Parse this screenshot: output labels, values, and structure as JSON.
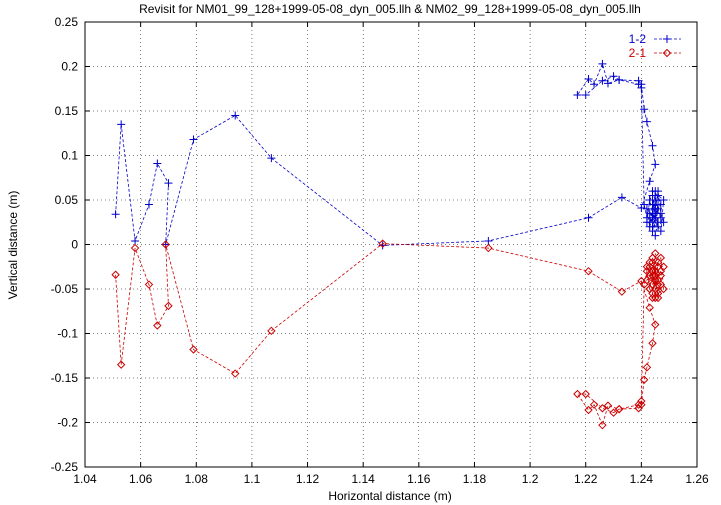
{
  "chart_data": {
    "type": "line",
    "title": "Revisit for NM01_99_128+1999-05-08_dyn_005.llh & NM02_99_128+1999-05-08_dyn_005.llh",
    "xlabel": "Horizontal distance (m)",
    "ylabel": "Vertical distance (m)",
    "xlim": [
      1.04,
      1.26
    ],
    "ylim": [
      -0.25,
      0.25
    ],
    "xticks": [
      "1.04",
      "1.06",
      "1.08",
      "1.1",
      "1.12",
      "1.14",
      "1.16",
      "1.18",
      "1.2",
      "1.22",
      "1.24",
      "1.26"
    ],
    "yticks": [
      "-0.25",
      "-0.2",
      "-0.15",
      "-0.1",
      "-0.05",
      "0",
      "0.05",
      "0.1",
      "0.15",
      "0.2",
      "0.25"
    ],
    "grid": true,
    "legend_position": "top-right",
    "series": [
      {
        "name": "1-2",
        "color": "#0000cc",
        "marker": "plus",
        "x": [
          1.051,
          1.053,
          1.058,
          1.063,
          1.066,
          1.07,
          1.069,
          1.079,
          1.094,
          1.107,
          1.147,
          1.185,
          1.221,
          1.233,
          1.24,
          1.243,
          1.245,
          1.244,
          1.242,
          1.241,
          1.24,
          1.239,
          1.232,
          1.228,
          1.226,
          1.223,
          1.221,
          1.217,
          1.22,
          1.226,
          1.23,
          1.232,
          1.239,
          1.24,
          1.241,
          1.242,
          1.243,
          1.244,
          1.245,
          1.246,
          1.247,
          1.248,
          1.244,
          1.246,
          1.245,
          1.243,
          1.247,
          1.248,
          1.244,
          1.245,
          1.246,
          1.242,
          1.243,
          1.244,
          1.246,
          1.247,
          1.245,
          1.244,
          1.246,
          1.243,
          1.245,
          1.247,
          1.244,
          1.246,
          1.245,
          1.244,
          1.243,
          1.242
        ],
        "y": [
          0.034,
          0.135,
          0.004,
          0.045,
          0.091,
          0.069,
          0.0,
          0.118,
          0.145,
          0.097,
          -0.001,
          0.004,
          0.03,
          0.053,
          0.041,
          0.071,
          0.09,
          0.111,
          0.138,
          0.152,
          0.18,
          0.184,
          0.185,
          0.181,
          0.203,
          0.18,
          0.186,
          0.168,
          0.168,
          0.184,
          0.189,
          0.185,
          0.18,
          0.176,
          0.045,
          0.03,
          0.05,
          0.055,
          0.04,
          0.06,
          0.035,
          0.025,
          0.02,
          0.045,
          0.03,
          0.035,
          0.015,
          0.05,
          0.06,
          0.01,
          0.025,
          0.04,
          0.02,
          0.03,
          0.055,
          0.045,
          0.035,
          0.015,
          0.04,
          0.025,
          0.05,
          0.03,
          0.045,
          0.02,
          0.06,
          0.035,
          0.05,
          0.025
        ]
      },
      {
        "name": "2-1",
        "color": "#cc0000",
        "marker": "diamond",
        "x": [
          1.051,
          1.053,
          1.058,
          1.063,
          1.066,
          1.07,
          1.069,
          1.079,
          1.094,
          1.107,
          1.147,
          1.185,
          1.221,
          1.233,
          1.24,
          1.243,
          1.245,
          1.244,
          1.242,
          1.241,
          1.24,
          1.239,
          1.232,
          1.228,
          1.226,
          1.223,
          1.221,
          1.217,
          1.22,
          1.226,
          1.23,
          1.232,
          1.239,
          1.24,
          1.241,
          1.242,
          1.243,
          1.244,
          1.245,
          1.246,
          1.247,
          1.248,
          1.244,
          1.246,
          1.245,
          1.243,
          1.247,
          1.248,
          1.244,
          1.245,
          1.246,
          1.242,
          1.243,
          1.244,
          1.246,
          1.247,
          1.245,
          1.244,
          1.246,
          1.243,
          1.245,
          1.247,
          1.244,
          1.246,
          1.245,
          1.244,
          1.243,
          1.242
        ],
        "y": [
          -0.034,
          -0.135,
          -0.004,
          -0.045,
          -0.091,
          -0.069,
          0.0,
          -0.118,
          -0.145,
          -0.097,
          0.001,
          -0.004,
          -0.03,
          -0.053,
          -0.041,
          -0.071,
          -0.09,
          -0.111,
          -0.138,
          -0.152,
          -0.18,
          -0.184,
          -0.185,
          -0.181,
          -0.203,
          -0.18,
          -0.186,
          -0.168,
          -0.168,
          -0.184,
          -0.189,
          -0.185,
          -0.18,
          -0.176,
          -0.045,
          -0.03,
          -0.05,
          -0.055,
          -0.04,
          -0.06,
          -0.035,
          -0.025,
          -0.02,
          -0.045,
          -0.03,
          -0.035,
          -0.015,
          -0.05,
          -0.06,
          -0.01,
          -0.025,
          -0.04,
          -0.02,
          -0.03,
          -0.055,
          -0.045,
          -0.035,
          -0.015,
          -0.04,
          -0.025,
          -0.05,
          -0.03,
          -0.045,
          -0.02,
          -0.06,
          -0.035,
          -0.05,
          -0.025
        ]
      }
    ]
  }
}
